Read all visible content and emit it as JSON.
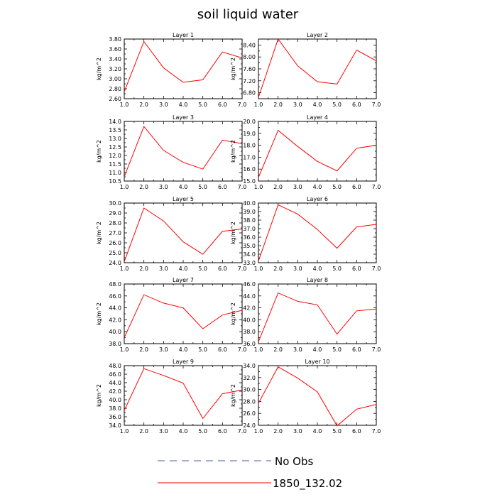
{
  "title": "soil liquid water",
  "legend": {
    "items": [
      {
        "label": "No Obs",
        "color": "#5b5b9e",
        "style": "dashed"
      },
      {
        "label": "1850_132.02",
        "color": "#ff0000",
        "style": "solid"
      }
    ]
  },
  "colors": {
    "series": "#ff0000"
  },
  "chart_data": [
    {
      "type": "line",
      "title": "Layer 1",
      "ylabel": "kg/m^2",
      "x": [
        1,
        2,
        3,
        4,
        5,
        6,
        7
      ],
      "xticks": [
        "1.0",
        "2.0",
        "3.0",
        "4.0",
        "5.0",
        "6.0",
        "7.0"
      ],
      "xlim": [
        1,
        7
      ],
      "ylim": [
        2.6,
        3.8
      ],
      "yticks": [
        "2.60",
        "2.80",
        "3.00",
        "3.20",
        "3.40",
        "3.60",
        "3.80"
      ],
      "series": [
        {
          "values": [
            2.74,
            3.75,
            3.22,
            2.93,
            2.98,
            3.54,
            3.42
          ]
        }
      ]
    },
    {
      "type": "line",
      "title": "Layer 2",
      "ylabel": "kg/m^2",
      "x": [
        1,
        2,
        3,
        4,
        5,
        6,
        7
      ],
      "xticks": [
        "1.0",
        "2.0",
        "3.0",
        "4.0",
        "5.0",
        "6.0",
        "7.0"
      ],
      "xlim": [
        1,
        7
      ],
      "ylim": [
        6.6,
        8.6
      ],
      "yticks": [
        "6.80",
        "7.20",
        "7.60",
        "8.00",
        "8.40"
      ],
      "series": [
        {
          "values": [
            6.64,
            8.6,
            7.7,
            7.17,
            7.09,
            8.23,
            7.87
          ]
        }
      ]
    },
    {
      "type": "line",
      "title": "Layer 3",
      "ylabel": "kg/m^2",
      "x": [
        1,
        2,
        3,
        4,
        5,
        6,
        7
      ],
      "xticks": [
        "1.0",
        "2.0",
        "3.0",
        "4.0",
        "5.0",
        "6.0",
        "7.0"
      ],
      "xlim": [
        1,
        7
      ],
      "ylim": [
        10.5,
        14.0
      ],
      "yticks": [
        "10.5",
        "11.0",
        "11.5",
        "12.0",
        "12.5",
        "13.0",
        "13.5",
        "14.0"
      ],
      "series": [
        {
          "values": [
            10.76,
            13.7,
            12.3,
            11.6,
            11.2,
            12.9,
            12.7
          ]
        }
      ]
    },
    {
      "type": "line",
      "title": "Layer 4",
      "ylabel": "kg/m^2",
      "x": [
        1,
        2,
        3,
        4,
        5,
        6,
        7
      ],
      "xticks": [
        "1.0",
        "2.0",
        "3.0",
        "4.0",
        "5.0",
        "6.0",
        "7.0"
      ],
      "xlim": [
        1,
        7
      ],
      "ylim": [
        15.0,
        20.0
      ],
      "yticks": [
        "15.0",
        "16.0",
        "17.0",
        "18.0",
        "19.0",
        "20.0"
      ],
      "series": [
        {
          "values": [
            15.3,
            19.25,
            17.9,
            16.65,
            15.85,
            17.75,
            18.0
          ]
        }
      ]
    },
    {
      "type": "line",
      "title": "Layer 5",
      "ylabel": "kg/m^2",
      "x": [
        1,
        2,
        3,
        4,
        5,
        6,
        7
      ],
      "xticks": [
        "1.0",
        "2.0",
        "3.0",
        "4.0",
        "5.0",
        "6.0",
        "7.0"
      ],
      "xlim": [
        1,
        7
      ],
      "ylim": [
        24.0,
        30.0
      ],
      "yticks": [
        "24.0",
        "25.0",
        "26.0",
        "27.0",
        "28.0",
        "29.0",
        "30.0"
      ],
      "series": [
        {
          "values": [
            24.1,
            29.5,
            28.2,
            26.1,
            24.85,
            27.15,
            27.4
          ]
        }
      ]
    },
    {
      "type": "line",
      "title": "Layer 6",
      "ylabel": "kg/m^2",
      "x": [
        1,
        2,
        3,
        4,
        5,
        6,
        7
      ],
      "xticks": [
        "1.0",
        "2.0",
        "3.0",
        "4.0",
        "5.0",
        "6.0",
        "7.0"
      ],
      "xlim": [
        1,
        7
      ],
      "ylim": [
        33.0,
        40.0
      ],
      "yticks": [
        "33.0",
        "34.0",
        "35.0",
        "36.0",
        "37.0",
        "38.0",
        "39.0",
        "40.0"
      ],
      "series": [
        {
          "values": [
            33.2,
            39.8,
            38.7,
            36.9,
            34.7,
            37.2,
            37.5
          ]
        }
      ]
    },
    {
      "type": "line",
      "title": "Layer 7",
      "ylabel": "kg/m^2",
      "x": [
        1,
        2,
        3,
        4,
        5,
        6,
        7
      ],
      "xticks": [
        "1.0",
        "2.0",
        "3.0",
        "4.0",
        "5.0",
        "6.0",
        "7.0"
      ],
      "xlim": [
        1,
        7
      ],
      "ylim": [
        38.0,
        48.0
      ],
      "yticks": [
        "38.0",
        "40.0",
        "42.0",
        "44.0",
        "46.0",
        "48.0"
      ],
      "series": [
        {
          "values": [
            39.0,
            46.2,
            44.8,
            44.0,
            40.5,
            42.8,
            43.6
          ]
        }
      ]
    },
    {
      "type": "line",
      "title": "Layer 8",
      "ylabel": "kg/m^2",
      "x": [
        1,
        2,
        3,
        4,
        5,
        6,
        7
      ],
      "xticks": [
        "1.0",
        "2.0",
        "3.0",
        "4.0",
        "5.0",
        "6.0",
        "7.0"
      ],
      "xlim": [
        1,
        7
      ],
      "ylim": [
        36.0,
        46.0
      ],
      "yticks": [
        "36.0",
        "38.0",
        "40.0",
        "42.0",
        "44.0",
        "46.0"
      ],
      "series": [
        {
          "values": [
            36.3,
            44.5,
            43.1,
            42.5,
            37.6,
            41.5,
            41.8
          ]
        }
      ]
    },
    {
      "type": "line",
      "title": "Layer 9",
      "ylabel": "kg/m^2",
      "x": [
        1,
        2,
        3,
        4,
        5,
        6,
        7
      ],
      "xticks": [
        "1.0",
        "2.0",
        "3.0",
        "4.0",
        "5.0",
        "6.0",
        "7.0"
      ],
      "xlim": [
        1,
        7
      ],
      "ylim": [
        34.0,
        48.0
      ],
      "yticks": [
        "34.0",
        "36.0",
        "38.0",
        "40.0",
        "42.0",
        "44.0",
        "46.0",
        "48.0"
      ],
      "series": [
        {
          "values": [
            37.5,
            47.3,
            45.7,
            43.9,
            35.6,
            41.4,
            42.3
          ]
        }
      ]
    },
    {
      "type": "line",
      "title": "Layer 10",
      "ylabel": "kg/m^2",
      "x": [
        1,
        2,
        3,
        4,
        5,
        6,
        7
      ],
      "xticks": [
        "1.0",
        "2.0",
        "3.0",
        "4.0",
        "5.0",
        "6.0",
        "7.0"
      ],
      "xlim": [
        1,
        7
      ],
      "ylim": [
        24.0,
        34.0
      ],
      "yticks": [
        "24.0",
        "26.0",
        "28.0",
        "30.0",
        "32.0",
        "34.0"
      ],
      "series": [
        {
          "values": [
            27.7,
            33.8,
            31.9,
            29.6,
            23.9,
            26.7,
            27.5
          ]
        }
      ]
    }
  ]
}
